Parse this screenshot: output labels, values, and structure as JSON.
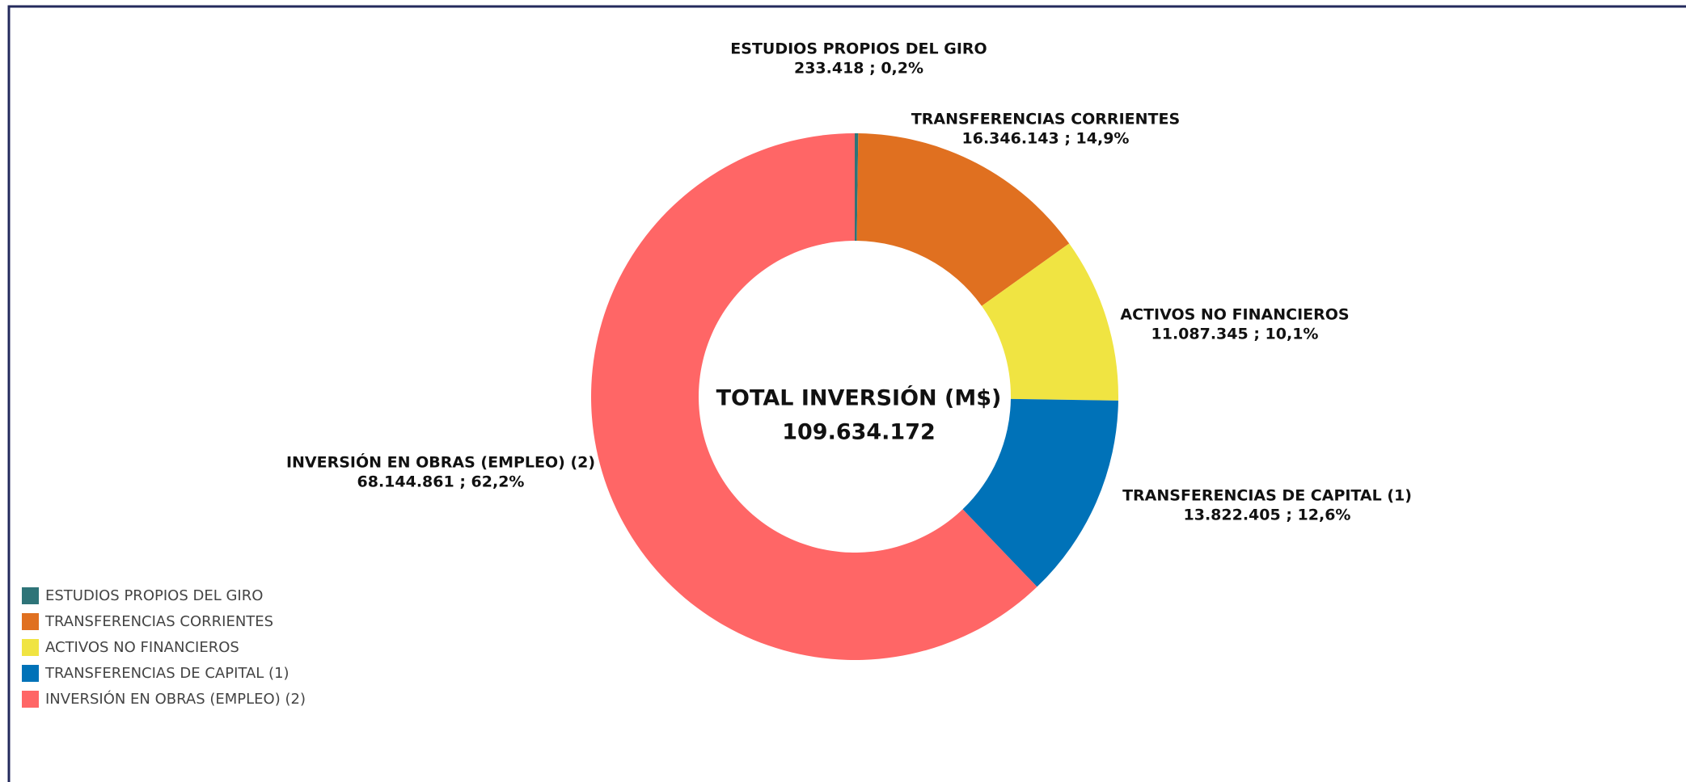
{
  "chart_data": {
    "type": "donut",
    "center_title": "TOTAL INVERSIÓN (M$)",
    "center_value": "109.634.172",
    "categories": [
      "ESTUDIOS PROPIOS DEL GIRO",
      "TRANSFERENCIAS CORRIENTES",
      "ACTIVOS NO FINANCIEROS",
      "TRANSFERENCIAS DE CAPITAL (1)",
      "INVERSIÓN EN OBRAS (EMPLEO) (2)"
    ],
    "values": [
      233418,
      16346143,
      11087345,
      13822405,
      68144861
    ],
    "value_labels": [
      "233.418 ; 0,2%",
      "16.346.143 ; 14,9%",
      "11.087.345 ; 10,1%",
      "13.822.405 ; 12,6%",
      "68.144.861 ; 62,2%"
    ],
    "colors": [
      "#2e7478",
      "#e07020",
      "#f0e442",
      "#0072b8",
      "#ff6666"
    ],
    "legend": "bottom-left"
  }
}
